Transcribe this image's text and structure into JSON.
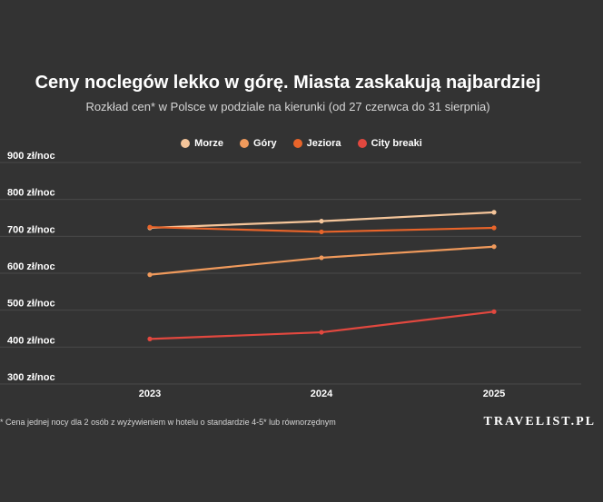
{
  "header": {
    "title": "Ceny noclegów lekko w górę. Miasta zaskakują najbardziej",
    "subtitle": "Rozkład cen* w Polsce w podziale na kierunki (od 27 czerwca do 31 sierpnia)"
  },
  "footnote": "* Cena jednej nocy dla 2 osób z wyżywieniem w hotelu o standardzie 4-5* lub równorzędnym",
  "brand": "TRAVELIST.PL",
  "chart_data": {
    "type": "line",
    "categories": [
      "2023",
      "2024",
      "2025"
    ],
    "y_ticks": [
      300,
      400,
      500,
      600,
      700,
      800,
      900
    ],
    "y_tick_labels": [
      "300 zł/noc",
      "400 zł/noc",
      "500 zł/noc",
      "600 zł/noc",
      "700 zł/noc",
      "800 zł/noc",
      "900 zł/noc"
    ],
    "ylim": [
      300,
      900
    ],
    "grid": true,
    "legend_position": "top-center",
    "series": [
      {
        "name": "Morze",
        "color": "#f5c59a",
        "values": [
          723,
          741,
          765
        ]
      },
      {
        "name": "Góry",
        "color": "#f09a5c",
        "values": [
          596,
          642,
          672
        ]
      },
      {
        "name": "Jeziora",
        "color": "#e8642a",
        "values": [
          725,
          712,
          723
        ]
      },
      {
        "name": "City breaki",
        "color": "#e2483f",
        "values": [
          422,
          440,
          496
        ]
      }
    ]
  }
}
